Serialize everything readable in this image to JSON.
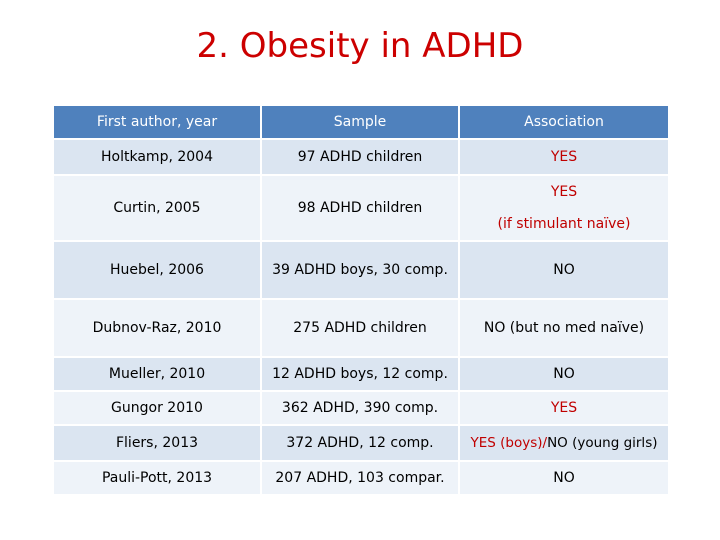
{
  "title": "2. Obesity in ADHD",
  "table": {
    "headers": [
      "First author, year",
      "Sample",
      "Association"
    ],
    "rows": [
      {
        "author": "Holtkamp, 2004",
        "sample": "97 ADHD children",
        "association": "YES"
      },
      {
        "author": "Curtin, 2005",
        "sample": "98 ADHD children",
        "association": "YES",
        "association_note": "(if stimulant naïve)"
      },
      {
        "author": "Huebel, 2006",
        "sample": "39 ADHD boys, 30 comp.",
        "association": "NO"
      },
      {
        "author": "Dubnov-Raz, 2010",
        "sample": "275 ADHD children",
        "association": "NO (but no med naïve)"
      },
      {
        "author": "Mueller, 2010",
        "sample": "12 ADHD boys, 12 comp.",
        "association": "NO"
      },
      {
        "author": "Gungor 2010",
        "sample": "362 ADHD, 390 comp.",
        "association": "YES"
      },
      {
        "author": "Fliers, 2013",
        "sample": "372 ADHD, 12 comp.",
        "association_yes": "YES (boys)/",
        "association_no": "NO (young girls)"
      },
      {
        "author": "Pauli-Pott, 2013",
        "sample": "207 ADHD, 103 compar.",
        "association": "NO"
      }
    ]
  },
  "colors": {
    "title": "#cc0000",
    "header_bg": "#4f81bd",
    "row_dark": "#dbe5f1",
    "row_light": "#eef3f9",
    "yes": "#c00000"
  }
}
